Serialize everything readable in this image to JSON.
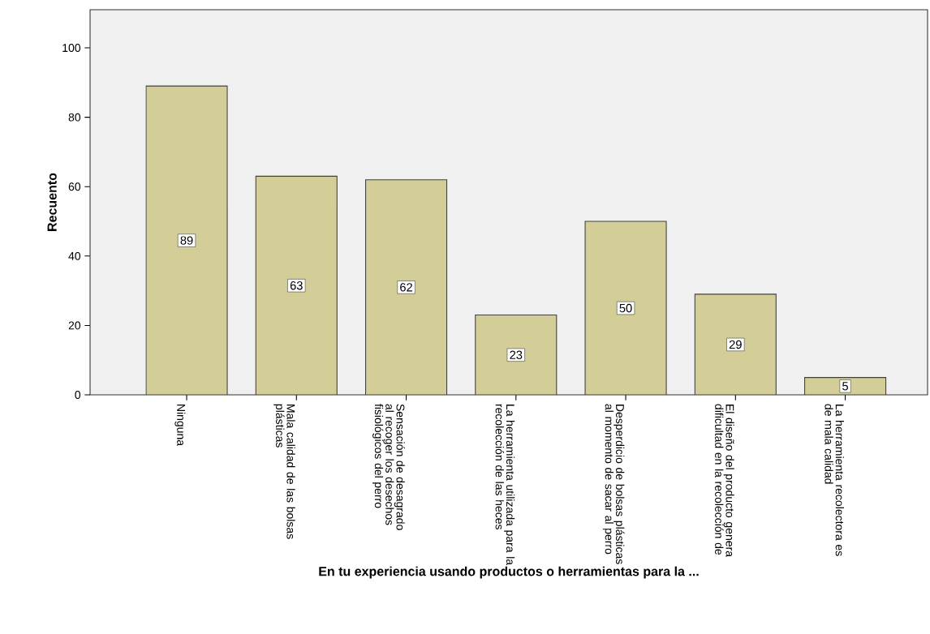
{
  "chart_data": {
    "type": "bar",
    "xlabel": "En tu experiencia usando productos o herramientas para la ...",
    "ylabel": "Recuento",
    "categories": [
      "Ninguna",
      "Mala calidad de las bolsas plásticas",
      "Sensación de desagrado al recoger los desechos fisiológicos del perro",
      "La herramienta utilizada para la recolección de las heces",
      "Desperdicio de bolsas plásticas al momento de sacar al perro",
      "El diseño del producto genera dificultad en la recolección de",
      "La herramienta recolectora es de mala calidad"
    ],
    "values": [
      89,
      63,
      62,
      23,
      50,
      29,
      5
    ],
    "color": "#d3ce98",
    "ylim": [
      0,
      111
    ],
    "yticks": [
      0,
      20,
      40,
      60,
      80,
      100
    ],
    "data_labels": true
  }
}
